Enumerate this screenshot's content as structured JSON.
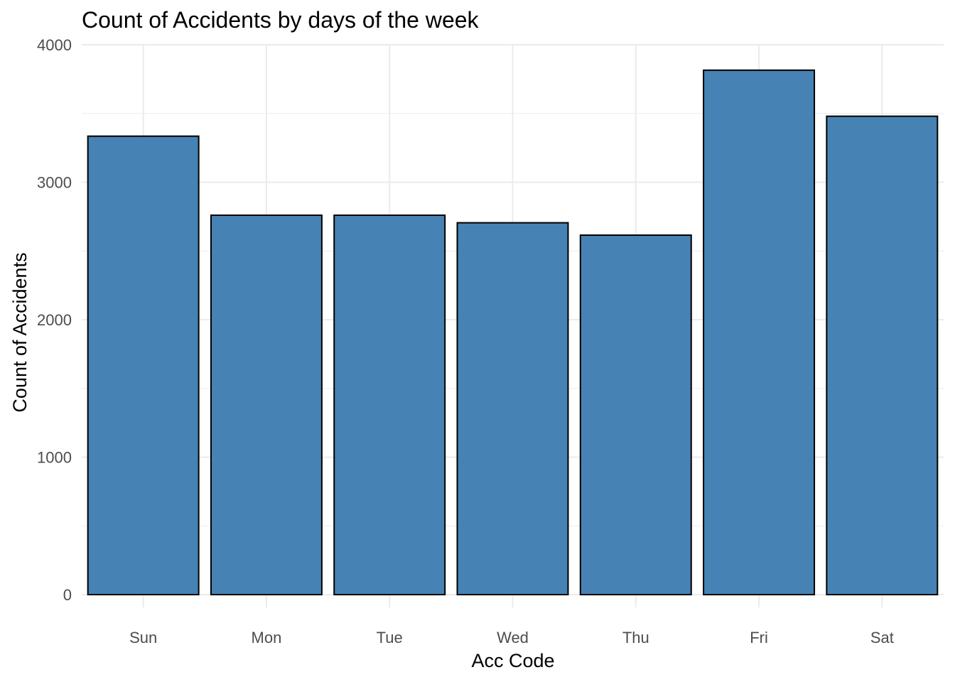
{
  "chart_data": {
    "type": "bar",
    "title": "Count of Accidents by days of the week",
    "xlabel": "Acc Code",
    "ylabel": "Count of Accidents",
    "categories": [
      "Sun",
      "Mon",
      "Tue",
      "Wed",
      "Thu",
      "Fri",
      "Sat"
    ],
    "values": [
      3335,
      2760,
      2760,
      2705,
      2615,
      3815,
      3480
    ],
    "ylim": [
      0,
      4000
    ],
    "yticks": [
      "0",
      "1000",
      "2000",
      "3000",
      "4000"
    ],
    "grid": true,
    "bar_fill": "#4682b4",
    "bar_outline": "#000000",
    "grid_color": "#ebebeb",
    "background": "#ffffff"
  }
}
